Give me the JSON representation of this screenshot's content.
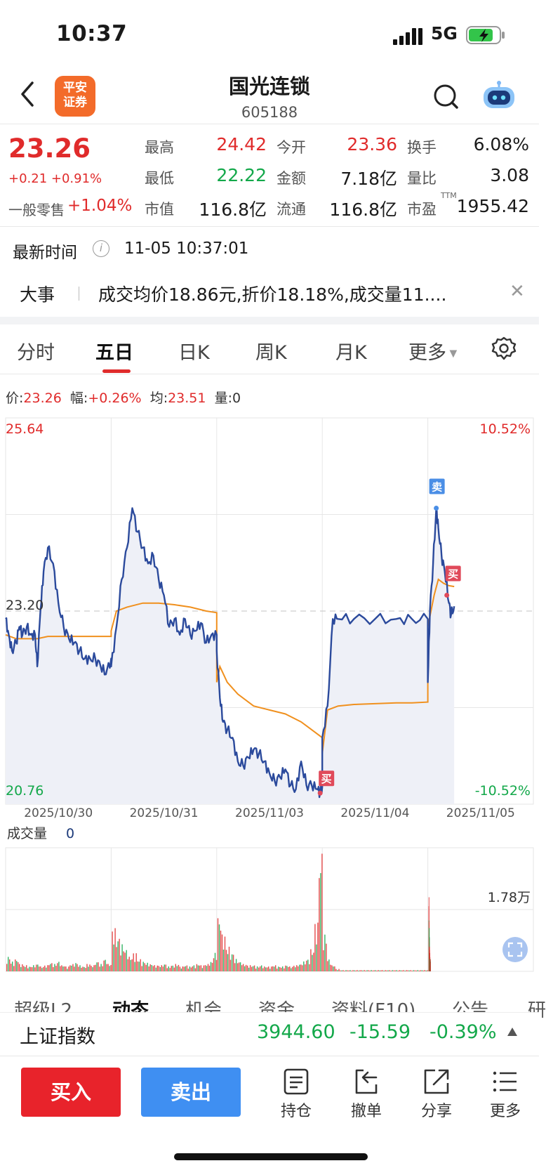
{
  "status_bar": {
    "time": "10:37",
    "network": "5G"
  },
  "nav": {
    "logo_text_1": "平安",
    "logo_text_2": "证券",
    "title": "国光连锁",
    "code": "605188"
  },
  "quote": {
    "price": "23.26",
    "change": "+0.21 +0.91%",
    "retail_label": "一般零售",
    "retail_value": "+1.04%",
    "fields": {
      "high_label": "最高",
      "high": "24.42",
      "low_label": "最低",
      "low": "22.22",
      "market_cap_label": "市值",
      "market_cap": "116.8亿",
      "open_label": "今开",
      "open": "23.36",
      "amount_label": "金额",
      "amount": "7.18亿",
      "float_label": "流通",
      "float": "116.8亿",
      "turnover_label": "换手",
      "turnover": "6.08%",
      "volume_ratio_label": "量比",
      "volume_ratio": "3.08",
      "pe_label": "市盈",
      "pe_tag": "TTM",
      "pe": "1955.42"
    },
    "latest_time_label": "最新时间",
    "latest_time_value": "11-05 10:37:01",
    "event_label": "大事",
    "event_text": "成交均价18.86元,折价18.18%,成交量11...."
  },
  "tabs": [
    "分时",
    "五日",
    "日K",
    "周K",
    "月K",
    "更多"
  ],
  "active_tab": "五日",
  "quote_line": {
    "price_label": "价:",
    "price": "23.26",
    "amp_label": "幅:",
    "amp": "+0.26%",
    "avg_label": "均:",
    "avg": "23.51",
    "vol_label": "量:",
    "vol": "0"
  },
  "chart_data": {
    "type": "line",
    "y_max_label": "25.64",
    "y_min_label": "20.76",
    "y_mid_label": "23.20",
    "pct_max_label": "10.52%",
    "pct_min_label": "-10.52%",
    "ylim": [
      20.76,
      25.64
    ],
    "dates": [
      "2025/10/30",
      "2025/10/31",
      "2025/11/03",
      "2025/11/04",
      "2025/11/05"
    ],
    "series": [
      {
        "name": "价",
        "color": "#2b4a9c",
        "points": [
          [
            0,
            23.1
          ],
          [
            0.03,
            22.9
          ],
          [
            0.06,
            22.7
          ],
          [
            0.1,
            22.8
          ],
          [
            0.13,
            23.0
          ],
          [
            0.16,
            22.9
          ],
          [
            0.2,
            23.0
          ],
          [
            0.24,
            22.9
          ],
          [
            0.28,
            22.9
          ],
          [
            0.3,
            22.5
          ],
          [
            0.33,
            23.2
          ],
          [
            0.36,
            23.7
          ],
          [
            0.4,
            24.0
          ],
          [
            0.45,
            23.8
          ],
          [
            0.5,
            23.3
          ],
          [
            0.55,
            23.0
          ],
          [
            0.6,
            22.85
          ],
          [
            0.65,
            22.8
          ],
          [
            0.7,
            22.7
          ],
          [
            0.75,
            22.6
          ],
          [
            0.8,
            22.6
          ],
          [
            0.85,
            22.6
          ],
          [
            0.9,
            22.5
          ],
          [
            0.95,
            22.4
          ],
          [
            1.0,
            22.6
          ],
          [
            1.0,
            22.5
          ],
          [
            1.05,
            23.0
          ],
          [
            1.1,
            23.6
          ],
          [
            1.15,
            24.0
          ],
          [
            1.2,
            24.5
          ],
          [
            1.25,
            24.2
          ],
          [
            1.3,
            24.0
          ],
          [
            1.35,
            23.8
          ],
          [
            1.4,
            23.9
          ],
          [
            1.45,
            23.6
          ],
          [
            1.5,
            23.4
          ],
          [
            1.55,
            23.0
          ],
          [
            1.6,
            23.1
          ],
          [
            1.65,
            22.9
          ],
          [
            1.7,
            23.1
          ],
          [
            1.75,
            22.9
          ],
          [
            1.8,
            22.95
          ],
          [
            1.85,
            23.05
          ],
          [
            1.9,
            22.8
          ],
          [
            1.95,
            22.9
          ],
          [
            2.0,
            22.9
          ],
          [
            2.0,
            22.7
          ],
          [
            2.03,
            22.1
          ],
          [
            2.06,
            21.8
          ],
          [
            2.1,
            21.7
          ],
          [
            2.15,
            21.6
          ],
          [
            2.2,
            21.3
          ],
          [
            2.25,
            21.25
          ],
          [
            2.3,
            21.35
          ],
          [
            2.35,
            21.45
          ],
          [
            2.4,
            21.4
          ],
          [
            2.45,
            21.3
          ],
          [
            2.5,
            21.15
          ],
          [
            2.55,
            21.05
          ],
          [
            2.6,
            21.1
          ],
          [
            2.65,
            21.2
          ],
          [
            2.7,
            21.0
          ],
          [
            2.75,
            20.95
          ],
          [
            2.8,
            21.3
          ],
          [
            2.85,
            21.0
          ],
          [
            2.9,
            21.0
          ],
          [
            2.95,
            20.95
          ],
          [
            2.98,
            20.9
          ],
          [
            3.0,
            20.98
          ],
          [
            3.0,
            21.6
          ],
          [
            3.05,
            22.0
          ],
          [
            3.1,
            23.1
          ],
          [
            3.15,
            23.1
          ],
          [
            3.3,
            23.1
          ],
          [
            3.5,
            23.1
          ],
          [
            3.7,
            23.1
          ],
          [
            3.85,
            23.1
          ],
          [
            4.0,
            23.1
          ],
          [
            4.0,
            22.3
          ],
          [
            4.02,
            23.2
          ],
          [
            4.05,
            23.8
          ],
          [
            4.08,
            24.5
          ],
          [
            4.1,
            24.25
          ],
          [
            4.13,
            23.9
          ],
          [
            4.16,
            23.7
          ],
          [
            4.2,
            23.3
          ],
          [
            4.22,
            23.15
          ],
          [
            4.25,
            23.26
          ]
        ]
      },
      {
        "name": "均",
        "color": "#f0901e",
        "points": [
          [
            0,
            22.9
          ],
          [
            0.1,
            22.85
          ],
          [
            0.2,
            22.85
          ],
          [
            0.3,
            22.85
          ],
          [
            0.4,
            22.88
          ],
          [
            0.5,
            22.88
          ],
          [
            0.6,
            22.88
          ],
          [
            0.7,
            22.88
          ],
          [
            0.8,
            22.88
          ],
          [
            0.9,
            22.88
          ],
          [
            1.0,
            22.88
          ],
          [
            1.0,
            22.95
          ],
          [
            1.05,
            23.2
          ],
          [
            1.15,
            23.25
          ],
          [
            1.3,
            23.3
          ],
          [
            1.45,
            23.3
          ],
          [
            1.6,
            23.28
          ],
          [
            1.75,
            23.25
          ],
          [
            1.9,
            23.2
          ],
          [
            2.0,
            23.18
          ],
          [
            2.0,
            22.3
          ],
          [
            2.03,
            22.5
          ],
          [
            2.1,
            22.3
          ],
          [
            2.2,
            22.15
          ],
          [
            2.35,
            22.0
          ],
          [
            2.5,
            21.95
          ],
          [
            2.65,
            21.9
          ],
          [
            2.8,
            21.8
          ],
          [
            2.9,
            21.7
          ],
          [
            3.0,
            21.6
          ],
          [
            3.0,
            21.4
          ],
          [
            3.05,
            21.95
          ],
          [
            3.15,
            22.0
          ],
          [
            3.3,
            22.02
          ],
          [
            3.5,
            22.03
          ],
          [
            3.7,
            22.04
          ],
          [
            3.85,
            22.04
          ],
          [
            4.0,
            22.05
          ],
          [
            4.0,
            23.0
          ],
          [
            4.03,
            23.2
          ],
          [
            4.06,
            23.4
          ],
          [
            4.1,
            23.6
          ],
          [
            4.15,
            23.55
          ],
          [
            4.2,
            23.52
          ],
          [
            4.25,
            23.51
          ]
        ]
      }
    ],
    "markers": [
      {
        "label": "卖",
        "color": "#4a8ee6",
        "x": 4.08,
        "y": 24.5
      },
      {
        "label": "买",
        "color": "#e04a5a",
        "x": 4.18,
        "y": 23.4
      },
      {
        "label": "买",
        "color": "#e04a5a",
        "x": 2.98,
        "y": 20.9
      }
    ],
    "volume_label": "成交量",
    "volume_value": "0",
    "volume_scale_label": "1.78万",
    "volume_bars": [
      {
        "day": 0,
        "spikes": [
          0.12,
          0.08,
          0.1,
          0.06,
          0.05,
          0.04,
          0.05,
          0.06,
          0.04,
          0.05,
          0.07,
          0.06,
          0.08,
          0.05,
          0.04,
          0.06,
          0.07,
          0.05,
          0.04,
          0.06,
          0.05,
          0.08,
          0.06,
          0.1,
          0.06
        ]
      },
      {
        "day": 1,
        "spikes": [
          0.35,
          0.28,
          0.22,
          0.18,
          0.12,
          0.15,
          0.1,
          0.08,
          0.07,
          0.06,
          0.05,
          0.05,
          0.06,
          0.04,
          0.05,
          0.06,
          0.04,
          0.05,
          0.04,
          0.05,
          0.06,
          0.05,
          0.06,
          0.08,
          0.15
        ]
      },
      {
        "day": 2,
        "spikes": [
          0.45,
          0.3,
          0.2,
          0.15,
          0.1,
          0.08,
          0.06,
          0.05,
          0.05,
          0.04,
          0.05,
          0.04,
          0.04,
          0.05,
          0.04,
          0.04,
          0.05,
          0.04,
          0.05,
          0.06,
          0.08,
          0.1,
          0.18,
          0.4,
          0.98
        ]
      },
      {
        "day": 3,
        "spikes": [
          0.3,
          0.1,
          0.05,
          0.02,
          0.01,
          0.01,
          0.01,
          0.01,
          0.01,
          0.01,
          0.01,
          0.01,
          0.01,
          0.01,
          0.01,
          0.01,
          0.01,
          0.01,
          0.01,
          0.01,
          0.01,
          0.01,
          0.01,
          0.01,
          0.01
        ]
      },
      {
        "day": 4,
        "spikes": [
          0.6,
          0.45,
          0.35,
          0.3,
          0.2,
          0.15,
          0.12,
          0.1,
          0.08,
          0.1
        ]
      }
    ]
  },
  "lower_tabs": [
    "超级L2",
    "动态",
    "机会",
    "资金",
    "资料(F10)",
    "公告",
    "研"
  ],
  "lower_active_tab": "动态",
  "index_bar": {
    "name": "上证指数",
    "value": "3944.60",
    "change": "-15.59",
    "pct": "-0.39%"
  },
  "bottom_bar": {
    "buy": "买入",
    "sell": "卖出",
    "holdings": "持仓",
    "cancel": "撤单",
    "share": "分享",
    "more": "更多"
  },
  "colors": {
    "up": "#e02b2b",
    "down": "#13a84a",
    "buy": "#e8232b",
    "sell": "#3f8ff2"
  }
}
